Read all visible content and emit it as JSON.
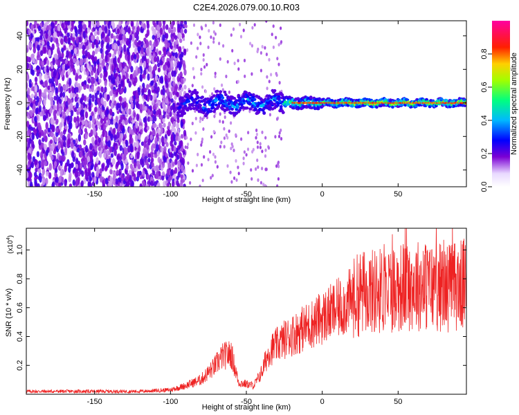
{
  "title": "C2E4.2026.079.00.10.R03",
  "chart_data": [
    {
      "type": "heatmap",
      "title": "C2E4.2026.079.00.10.R03",
      "xlabel": "Height of straight line (km)",
      "ylabel": "Frequency (Hz)",
      "xlim": [
        -195,
        95
      ],
      "ylim": [
        -50,
        49
      ],
      "xticks": [
        -150,
        -100,
        -50,
        0,
        50
      ],
      "yticks": [
        -40,
        -20,
        0,
        20,
        40
      ],
      "colorbar": {
        "label": "Normalized spectral amplitude",
        "range": [
          0,
          1
        ],
        "ticks": [
          0.0,
          0.2,
          0.4,
          0.6,
          0.8
        ],
        "tick_labels": [
          "0.0",
          "0.2",
          "0.4",
          "0.6",
          "0.8"
        ],
        "colors": [
          "#ffffff",
          "#7b00d4",
          "#0000ff",
          "#00c0ff",
          "#00ff60",
          "#d0ff00",
          "#ff2000",
          "#ff00a0"
        ]
      },
      "regions": [
        {
          "x_from": -195,
          "x_to": -95,
          "description_freq": [
            -50,
            49
          ],
          "amplitude": 0.12
        },
        {
          "x_from": -95,
          "x_to": -25,
          "description_freq": [
            -8,
            8
          ],
          "amplitude": 0.45
        },
        {
          "x_from": -25,
          "x_to": 95,
          "description_freq": [
            -3,
            3
          ],
          "amplitude": 0.9
        }
      ]
    },
    {
      "type": "line",
      "xlabel": "Height of straight line (km)",
      "ylabel": "SNR (10 * v/v)",
      "scale_label": "(x10",
      "scale_exp": "4",
      "scale_close": ")",
      "xlim": [
        -195,
        95
      ],
      "ylim": [
        0,
        1.15
      ],
      "xticks": [
        -150,
        -100,
        -50,
        0,
        50
      ],
      "yticks": [
        0.2,
        0.4,
        0.6,
        0.8,
        1.0
      ],
      "series_color": "#ee2222",
      "envelope": [
        {
          "x": -195,
          "y": 0.02
        },
        {
          "x": -120,
          "y": 0.02
        },
        {
          "x": -100,
          "y": 0.03
        },
        {
          "x": -90,
          "y": 0.06
        },
        {
          "x": -80,
          "y": 0.1
        },
        {
          "x": -72,
          "y": 0.18
        },
        {
          "x": -66,
          "y": 0.26
        },
        {
          "x": -60,
          "y": 0.28
        },
        {
          "x": -55,
          "y": 0.08
        },
        {
          "x": -45,
          "y": 0.06
        },
        {
          "x": -40,
          "y": 0.15
        },
        {
          "x": -35,
          "y": 0.3
        },
        {
          "x": -25,
          "y": 0.38
        },
        {
          "x": -15,
          "y": 0.44
        },
        {
          "x": -5,
          "y": 0.5
        },
        {
          "x": 5,
          "y": 0.56
        },
        {
          "x": 15,
          "y": 0.62
        },
        {
          "x": 25,
          "y": 0.7
        },
        {
          "x": 40,
          "y": 0.72
        },
        {
          "x": 60,
          "y": 0.76
        },
        {
          "x": 80,
          "y": 0.74
        },
        {
          "x": 95,
          "y": 0.76
        }
      ]
    }
  ]
}
